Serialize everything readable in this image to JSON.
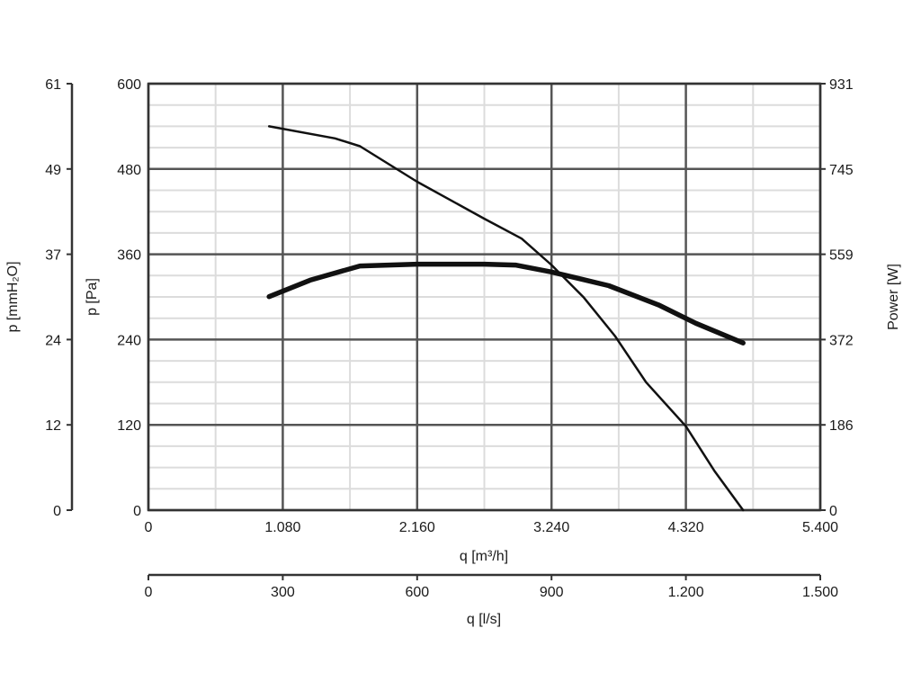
{
  "chart_data": {
    "type": "line",
    "title": "",
    "x_axis_primary": {
      "label": "q [m³/h]",
      "range": [
        0,
        5400
      ],
      "ticks": [
        {
          "value": 0,
          "label": "0"
        },
        {
          "value": 1080,
          "label": "1.080"
        },
        {
          "value": 2160,
          "label": "2.160"
        },
        {
          "value": 3240,
          "label": "3.240"
        },
        {
          "value": 4320,
          "label": "4.320"
        },
        {
          "value": 5400,
          "label": "5.400"
        }
      ]
    },
    "x_axis_secondary": {
      "label": "q [l/s]",
      "range": [
        0,
        1500
      ],
      "ticks": [
        {
          "value": 0,
          "label": "0"
        },
        {
          "value": 300,
          "label": "300"
        },
        {
          "value": 600,
          "label": "600"
        },
        {
          "value": 900,
          "label": "900"
        },
        {
          "value": 1200,
          "label": "1.200"
        },
        {
          "value": 1500,
          "label": "1.500"
        }
      ]
    },
    "y_axis_pa": {
      "label": "p [Pa]",
      "range": [
        0,
        600
      ],
      "ticks": [
        {
          "value": 0,
          "label": "0"
        },
        {
          "value": 120,
          "label": "120"
        },
        {
          "value": 240,
          "label": "240"
        },
        {
          "value": 360,
          "label": "360"
        },
        {
          "value": 480,
          "label": "480"
        },
        {
          "value": 600,
          "label": "600"
        }
      ]
    },
    "y_axis_mmh2o": {
      "label": "p [mmH₂O]",
      "range": [
        0,
        61
      ],
      "ticks": [
        "0",
        "12",
        "24",
        "37",
        "49",
        "61"
      ]
    },
    "y_axis_power": {
      "label": "Power [W]",
      "range": [
        0,
        931
      ],
      "ticks": [
        "0",
        "186",
        "372",
        "559",
        "745",
        "931"
      ]
    },
    "grid": {
      "major": true,
      "minor": true,
      "minor_divisions_x": 2,
      "minor_divisions_y": 4
    },
    "series": [
      {
        "axis": "pressure",
        "stroke_color": "#111111",
        "points": [
          [
            970,
            540
          ],
          [
            1500,
            523
          ],
          [
            1700,
            512
          ],
          [
            2160,
            462
          ],
          [
            2700,
            410
          ],
          [
            3000,
            382
          ],
          [
            3240,
            345
          ],
          [
            3500,
            299
          ],
          [
            3750,
            245
          ],
          [
            4000,
            180
          ],
          [
            4320,
            118
          ],
          [
            4550,
            55
          ],
          [
            4780,
            0
          ]
        ]
      },
      {
        "axis": "power",
        "stroke_color": "#111111",
        "points": [
          [
            970,
            466
          ],
          [
            1300,
            502
          ],
          [
            1700,
            533
          ],
          [
            2160,
            537
          ],
          [
            2700,
            537
          ],
          [
            2950,
            535
          ],
          [
            3240,
            520
          ],
          [
            3700,
            490
          ],
          [
            4100,
            448
          ],
          [
            4400,
            408
          ],
          [
            4780,
            365
          ]
        ]
      }
    ]
  }
}
